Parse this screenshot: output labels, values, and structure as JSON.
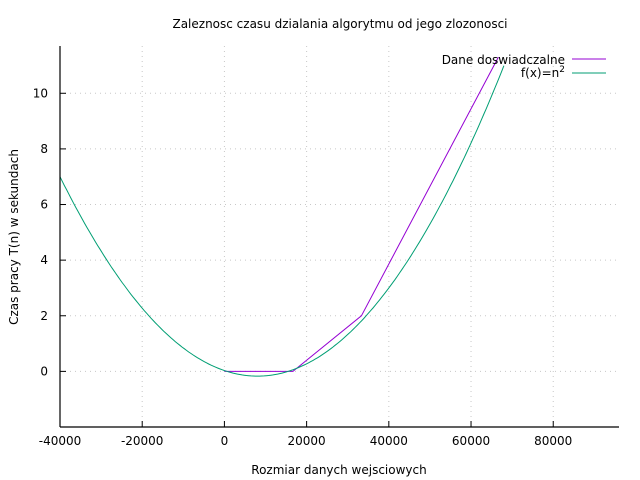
{
  "chart_data": {
    "type": "line",
    "title": "Zaleznosc czasu dzialania algorytmu od jego zlozonosci",
    "xlabel": "Rozmiar danych wejsciowych",
    "ylabel": "Czas pracy T(n) w sekundach",
    "xlim": [
      -40000,
      96000
    ],
    "ylim": [
      -2,
      11.7
    ],
    "xticks": [
      -40000,
      -20000,
      0,
      20000,
      40000,
      60000,
      80000
    ],
    "xtick_labels": [
      "-40000",
      "-20000",
      "0",
      "20000",
      "40000",
      "60000",
      "80000"
    ],
    "yticks": [
      0,
      2,
      4,
      6,
      8,
      10
    ],
    "ytick_labels": [
      "0",
      "2",
      "4",
      "6",
      "8",
      "10"
    ],
    "grid": true,
    "legend_position": "top-right",
    "series": [
      {
        "name": "Dane doswiadczalne",
        "color": "#9400d3",
        "kind": "polyline",
        "x": [
          0,
          16666,
          33333,
          66666
        ],
        "y": [
          0,
          0,
          2,
          11.3
        ]
      },
      {
        "name": "f(x)=n2",
        "legend_text": "f(x)=n",
        "legend_superscript": "2",
        "color": "#009e73",
        "kind": "function",
        "function": "quadratic",
        "coefficients": {
          "a": 3.106e-09,
          "b": -5e-05,
          "c": 0.03
        },
        "x_range": [
          -40000,
          68000
        ]
      }
    ]
  }
}
